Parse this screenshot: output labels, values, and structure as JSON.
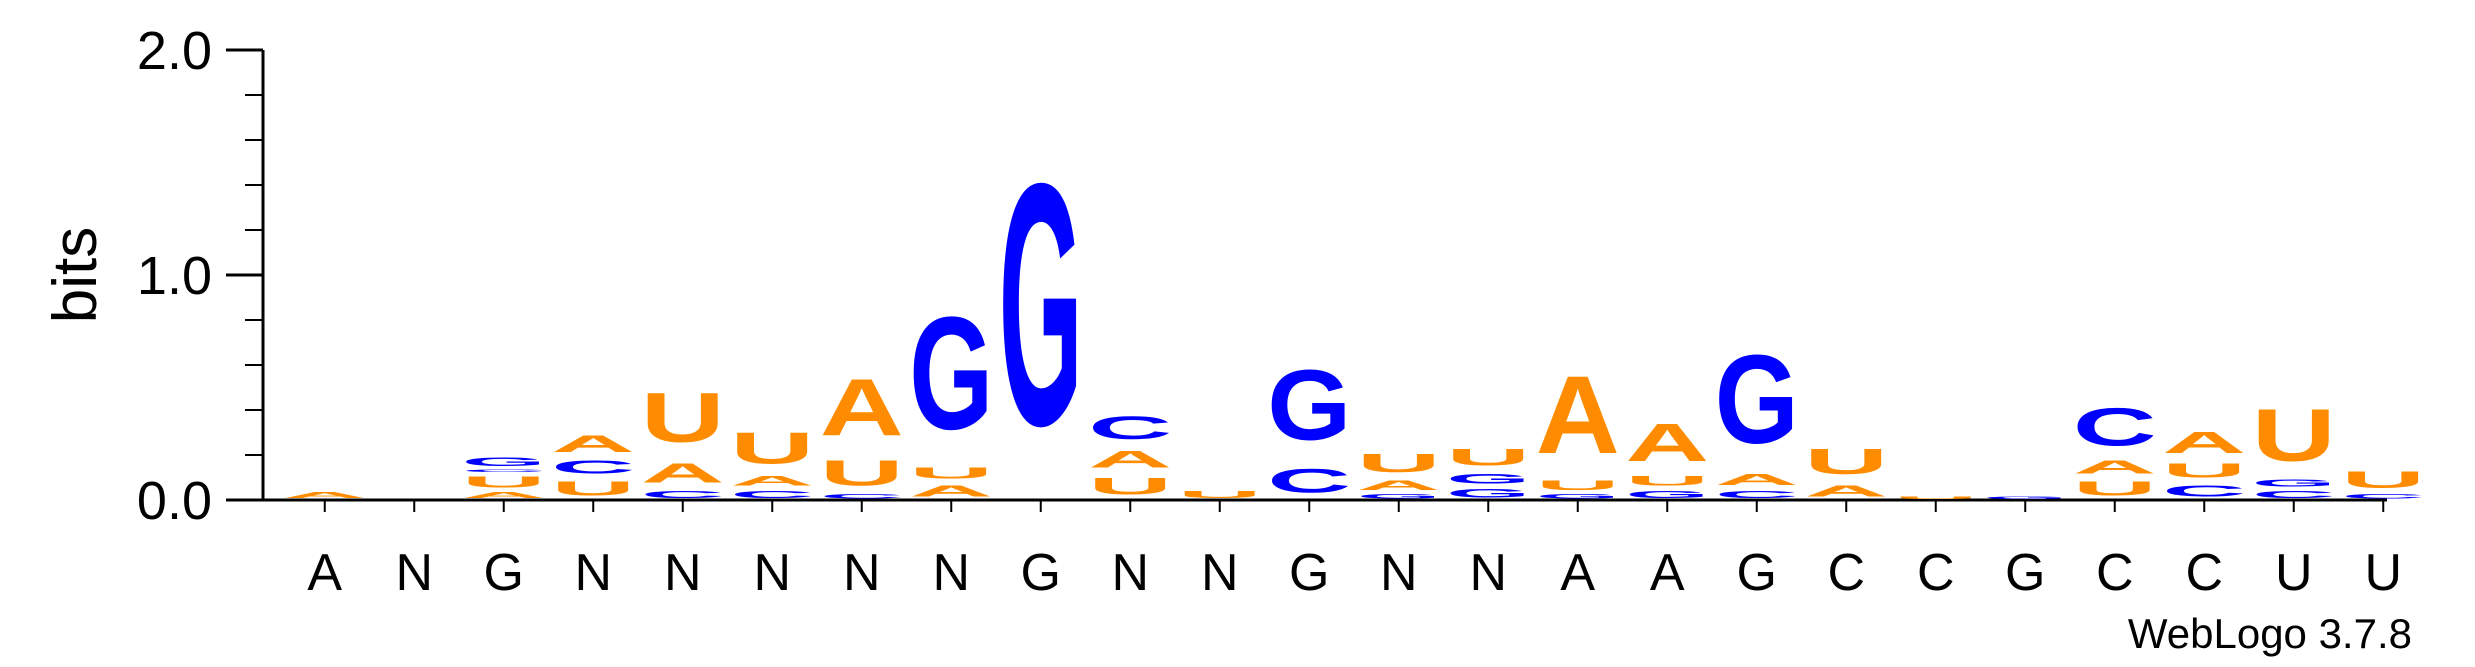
{
  "chart_data": {
    "type": "sequence-logo",
    "ylabel": "bits",
    "ylim": [
      0,
      2.0
    ],
    "yticks": [
      "0.0",
      "1.0",
      "2.0"
    ],
    "xlabels": [
      "A",
      "N",
      "G",
      "N",
      "N",
      "N",
      "N",
      "N",
      "G",
      "N",
      "N",
      "G",
      "N",
      "N",
      "A",
      "A",
      "G",
      "C",
      "C",
      "G",
      "C",
      "C",
      "U",
      "U"
    ],
    "watermark": "WebLogo 3.7.8",
    "colors": {
      "A": "#ff8c00",
      "U": "#ff8c00",
      "G": "#0000ff",
      "C": "#0000ff"
    },
    "columns": [
      [
        [
          "A",
          0.04
        ]
      ],
      [],
      [
        [
          "A",
          0.04
        ],
        [
          "U",
          0.08
        ],
        [
          "C",
          0.02
        ],
        [
          "G",
          0.06
        ]
      ],
      [
        [
          "U",
          0.1
        ],
        [
          "C",
          0.09
        ],
        [
          "A",
          0.12
        ]
      ],
      [
        [
          "C",
          0.05
        ],
        [
          "A",
          0.14
        ],
        [
          "U",
          0.35
        ]
      ],
      [
        [
          "C",
          0.05
        ],
        [
          "A",
          0.07
        ],
        [
          "U",
          0.22
        ]
      ],
      [
        [
          "C",
          0.03
        ],
        [
          "U",
          0.18
        ],
        [
          "A",
          0.4
        ]
      ],
      [
        [
          "A",
          0.08
        ],
        [
          "U",
          0.08
        ],
        [
          "G",
          0.8
        ]
      ],
      [
        [
          "G",
          1.72
        ]
      ],
      [
        [
          "U",
          0.12
        ],
        [
          "A",
          0.12
        ],
        [
          "C",
          0.16
        ]
      ],
      [
        [
          "U",
          0.05
        ]
      ],
      [
        [
          "C",
          0.17
        ],
        [
          "G",
          0.5
        ]
      ],
      [
        [
          "G",
          0.03
        ],
        [
          "A",
          0.07
        ],
        [
          "U",
          0.13
        ]
      ],
      [
        [
          "G",
          0.06
        ],
        [
          "G",
          0.07
        ],
        [
          "U",
          0.12
        ]
      ],
      [
        [
          "G",
          0.03
        ],
        [
          "U",
          0.07
        ],
        [
          "A",
          0.55
        ]
      ],
      [
        [
          "G",
          0.05
        ],
        [
          "U",
          0.07
        ],
        [
          "A",
          0.27
        ]
      ],
      [
        [
          "C",
          0.05
        ],
        [
          "A",
          0.08
        ],
        [
          "G",
          0.63
        ]
      ],
      [
        [
          "A",
          0.08
        ],
        [
          "U",
          0.18
        ]
      ],
      [
        [
          "U",
          0.02
        ]
      ],
      [
        [
          "G",
          0.02
        ]
      ],
      [
        [
          "U",
          0.1
        ],
        [
          "A",
          0.09
        ],
        [
          "C",
          0.27
        ]
      ],
      [
        [
          "C",
          0.08
        ],
        [
          "U",
          0.1
        ],
        [
          "A",
          0.15
        ]
      ],
      [
        [
          "C",
          0.05
        ],
        [
          "G",
          0.05
        ],
        [
          "U",
          0.37
        ]
      ],
      [
        [
          "C",
          0.03
        ],
        [
          "U",
          0.12
        ]
      ]
    ]
  }
}
